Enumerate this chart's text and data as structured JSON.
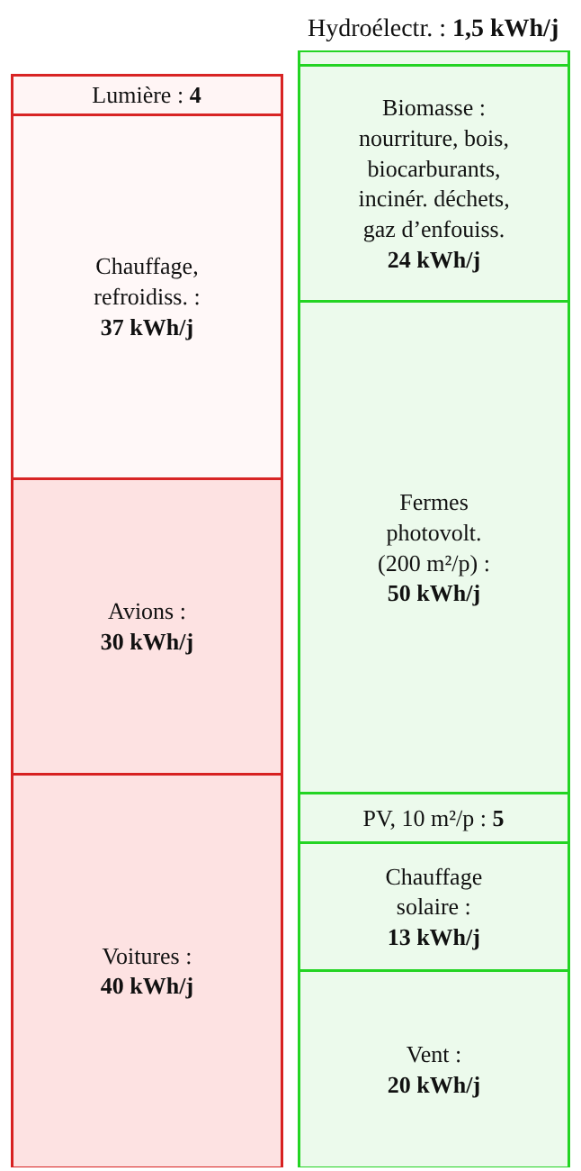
{
  "chart_data": {
    "type": "bar",
    "stacked": true,
    "categories": [
      null,
      null
    ],
    "legend": false,
    "data_labels": true,
    "series": [
      {
        "name": "Voitures :",
        "color": "#fde2e2",
        "values": [
          40,
          null
        ],
        "value_labels": [
          "40 kWh/j",
          null
        ]
      },
      {
        "name": "Avions :",
        "color": "#fde2e2",
        "values": [
          30,
          null
        ],
        "value_labels": [
          "30 kWh/j",
          null
        ]
      },
      {
        "name": "Chauffage,\nrefroidiss. :",
        "color": "#fff8f8",
        "values": [
          37,
          null
        ],
        "value_labels": [
          "37 kWh/j",
          null
        ]
      },
      {
        "name": "Lumière :",
        "color": "#fff5f5",
        "values": [
          4,
          null
        ],
        "value_labels": [
          "4",
          null
        ]
      },
      {
        "name": "Vent :",
        "color": "#ecfaec",
        "values": [
          null,
          20
        ],
        "value_labels": [
          null,
          "20 kWh/j"
        ]
      },
      {
        "name": "Chauffage\nsolaire :",
        "color": "#ecfaec",
        "values": [
          null,
          13
        ],
        "value_labels": [
          null,
          "13 kWh/j"
        ]
      },
      {
        "name": "PV, 10 m²/p :",
        "color": "#ecfaec",
        "values": [
          null,
          5
        ],
        "value_labels": [
          null,
          "5"
        ]
      },
      {
        "name": "Fermes\nphotovolt.\n(200 m²/p) :",
        "color": "#ecfaec",
        "values": [
          null,
          50
        ],
        "value_labels": [
          null,
          "50 kWh/j"
        ]
      },
      {
        "name": "Biomasse :\nnourriture, bois,\nbiocarburants,\nincinér. déchets,\ngaz d’enfouiss.",
        "color": "#ecfaec",
        "values": [
          null,
          24
        ],
        "value_labels": [
          null,
          "24 kWh/j"
        ]
      },
      {
        "name": "Hydroélectr. :",
        "color": "#ecfaec",
        "values": [
          null,
          1.5
        ],
        "value_labels": [
          null,
          "1,5 kWh/j"
        ]
      }
    ]
  }
}
